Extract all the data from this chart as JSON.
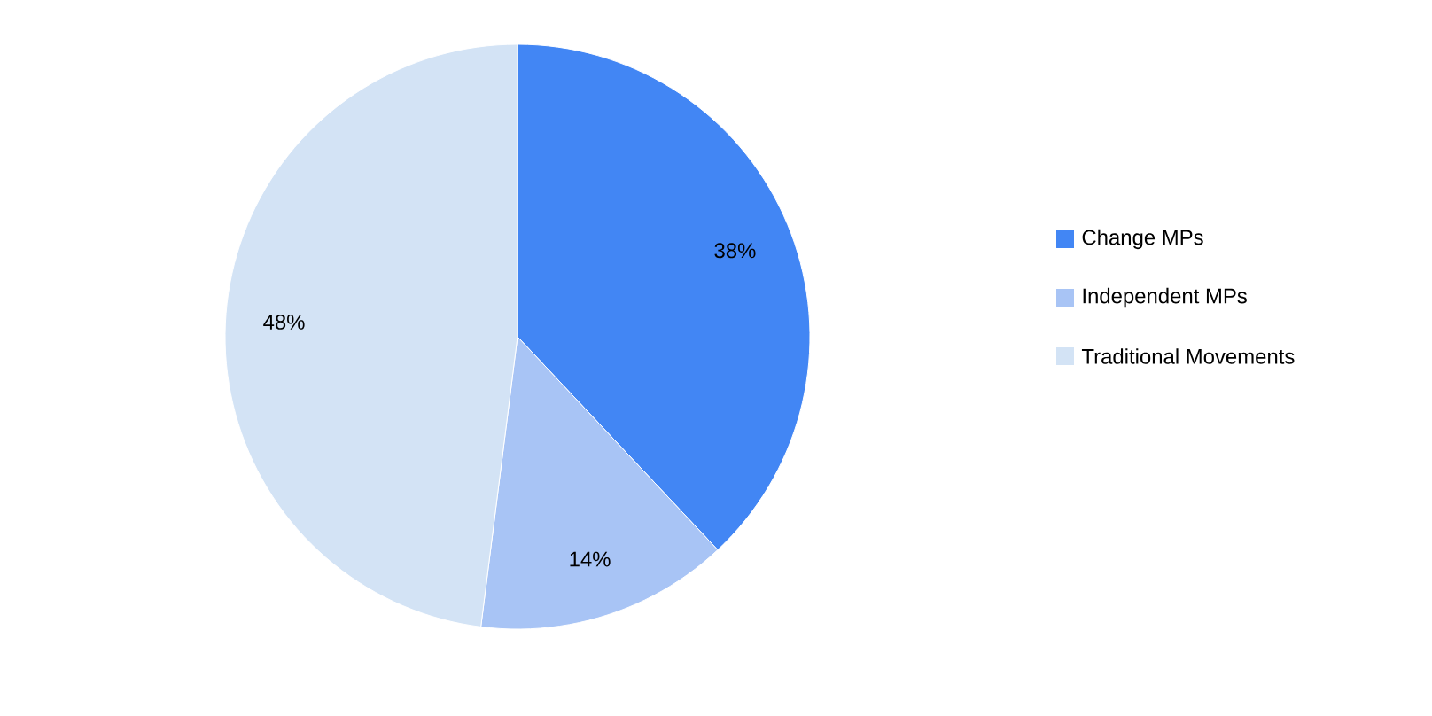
{
  "chart_data": {
    "type": "pie",
    "categories": [
      "Change MPs",
      "Independent MPs",
      "Traditional Movements"
    ],
    "values": [
      38,
      14,
      48
    ],
    "colors": [
      "#4286f4",
      "#a8c4f5",
      "#d3e3f5"
    ],
    "value_labels": [
      "38%",
      "14%",
      "48%"
    ],
    "legend": "right"
  }
}
